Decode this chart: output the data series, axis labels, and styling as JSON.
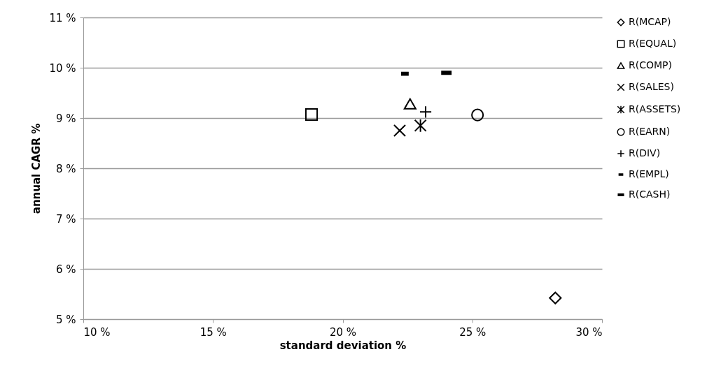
{
  "chart_data": {
    "type": "scatter",
    "xlabel": "standard deviation %",
    "ylabel": "annual CAGR %",
    "xlim": [
      10,
      30
    ],
    "ylim": [
      5,
      11
    ],
    "xticks": [
      {
        "value": 10,
        "label": "10 %"
      },
      {
        "value": 15,
        "label": "15 %"
      },
      {
        "value": 20,
        "label": "20 %"
      },
      {
        "value": 25,
        "label": "25 %"
      },
      {
        "value": 30,
        "label": "30 %"
      }
    ],
    "yticks": [
      {
        "value": 5,
        "label": "5 %"
      },
      {
        "value": 6,
        "label": "6 %"
      },
      {
        "value": 7,
        "label": "7 %"
      },
      {
        "value": 8,
        "label": "8 %"
      },
      {
        "value": 9,
        "label": "9 %"
      },
      {
        "value": 10,
        "label": "10 %"
      },
      {
        "value": 11,
        "label": "11 %"
      }
    ],
    "grid": "y",
    "legend": "right",
    "series": [
      {
        "name": "R(MCAP)",
        "color": "#000000",
        "marker": "diamond",
        "x": [
          28.2
        ],
        "values": [
          5.42
        ]
      },
      {
        "name": "R(EQUAL)",
        "color": "#000000",
        "marker": "square",
        "x": [
          18.8
        ],
        "values": [
          9.07
        ]
      },
      {
        "name": "R(COMP)",
        "color": "#000000",
        "marker": "triangle",
        "x": [
          22.6
        ],
        "values": [
          9.28
        ]
      },
      {
        "name": "R(SALES)",
        "color": "#000000",
        "marker": "cross",
        "x": [
          22.2
        ],
        "values": [
          8.75
        ]
      },
      {
        "name": "R(ASSETS)",
        "color": "#000000",
        "marker": "cross",
        "x": [
          23.0
        ],
        "values": [
          8.85
        ]
      },
      {
        "name": "R(EARN)",
        "color": "#000000",
        "marker": "circle",
        "x": [
          25.2
        ],
        "values": [
          9.06
        ]
      },
      {
        "name": "R(DIV)",
        "color": "#000000",
        "marker": "cross",
        "x": [
          23.2
        ],
        "values": [
          9.12
        ]
      },
      {
        "name": "R(EMPL)",
        "color": "#000000",
        "marker": "square",
        "x": [
          22.4
        ],
        "values": [
          9.88
        ]
      },
      {
        "name": "R(CASH)",
        "color": "#000000",
        "marker": "square",
        "x": [
          24.0
        ],
        "values": [
          9.9
        ]
      }
    ]
  }
}
